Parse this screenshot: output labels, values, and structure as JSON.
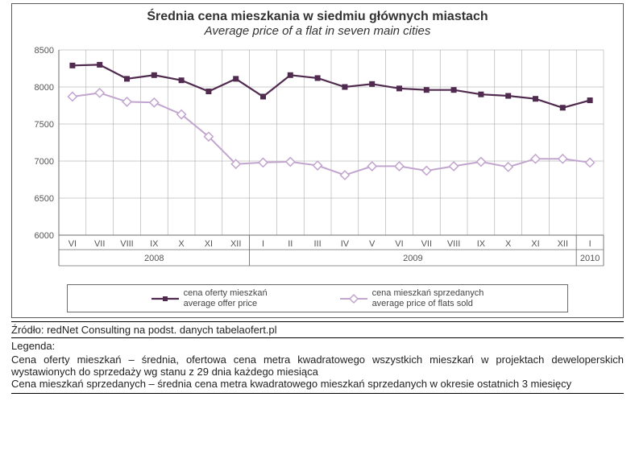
{
  "chart": {
    "type": "line",
    "title_main": "Średnia cena mieszkania w siedmiu głównych miastach",
    "title_sub": "Average price of a flat in seven main cities",
    "title_fontsize": 16,
    "subtitle_fontsize": 15,
    "background_color": "#ffffff",
    "frame_border_color": "#5b5b5b",
    "grid_color": "#9c9c9c",
    "grid_width": 0.5,
    "axis_color": "#6b6b6b",
    "label_color": "#555555",
    "label_fontsize": 11,
    "ylim": [
      6000,
      8500
    ],
    "ytick_step": 500,
    "yticks": [
      6000,
      6500,
      7000,
      7500,
      8000,
      8500
    ],
    "periods": [
      {
        "month": "VI",
        "year": "2008"
      },
      {
        "month": "VII",
        "year": "2008"
      },
      {
        "month": "VIII",
        "year": "2008"
      },
      {
        "month": "IX",
        "year": "2008"
      },
      {
        "month": "X",
        "year": "2008"
      },
      {
        "month": "XI",
        "year": "2008"
      },
      {
        "month": "XII",
        "year": "2008"
      },
      {
        "month": "I",
        "year": "2009"
      },
      {
        "month": "II",
        "year": "2009"
      },
      {
        "month": "III",
        "year": "2009"
      },
      {
        "month": "IV",
        "year": "2009"
      },
      {
        "month": "V",
        "year": "2009"
      },
      {
        "month": "VI",
        "year": "2009"
      },
      {
        "month": "VII",
        "year": "2009"
      },
      {
        "month": "VIII",
        "year": "2009"
      },
      {
        "month": "IX",
        "year": "2009"
      },
      {
        "month": "X",
        "year": "2009"
      },
      {
        "month": "XI",
        "year": "2009"
      },
      {
        "month": "XII",
        "year": "2009"
      },
      {
        "month": "I",
        "year": "2010"
      }
    ],
    "year_groups": [
      {
        "label": "2008",
        "span": [
          0,
          6
        ]
      },
      {
        "label": "2009",
        "span": [
          7,
          18
        ]
      },
      {
        "label": "2010",
        "span": [
          19,
          19
        ]
      }
    ],
    "series": [
      {
        "id": "offer",
        "label_pl": "cena oferty mieszkań",
        "label_en": "average offer price",
        "color": "#502a4f",
        "marker": "square",
        "marker_size": 6,
        "line_width": 2.2,
        "values": [
          8290,
          8300,
          8110,
          8160,
          8090,
          7940,
          8110,
          7870,
          8160,
          8120,
          8000,
          8040,
          7980,
          7960,
          7960,
          7900,
          7880,
          7840,
          7720,
          7820
        ]
      },
      {
        "id": "sold",
        "label_pl": "cena mieszkań sprzedanych",
        "label_en": "average price of flats sold",
        "color": "#c2a5cf",
        "marker": "diamond",
        "marker_size": 7,
        "line_width": 2,
        "values": [
          7870,
          7920,
          7800,
          7790,
          7630,
          7330,
          6960,
          6980,
          6990,
          6940,
          6810,
          6930,
          6930,
          6870,
          6930,
          6990,
          6920,
          7030,
          7030,
          6980
        ]
      }
    ]
  },
  "caption": {
    "source": "Źródło: redNet Consulting na podst. danych tabelaofert.pl",
    "legend_header": "Legenda:",
    "legend_line1": "Cena oferty mieszkań – średnia, ofertowa cena metra kwadratowego wszystkich mieszkań w projektach deweloperskich wystawionych do sprzedaży wg stanu z 29 dnia każdego miesiąca",
    "legend_line2": "Cena mieszkań sprzedanych – średnia cena metra kwadratowego mieszkań sprzedanych w okresie ostatnich 3 miesięcy"
  }
}
